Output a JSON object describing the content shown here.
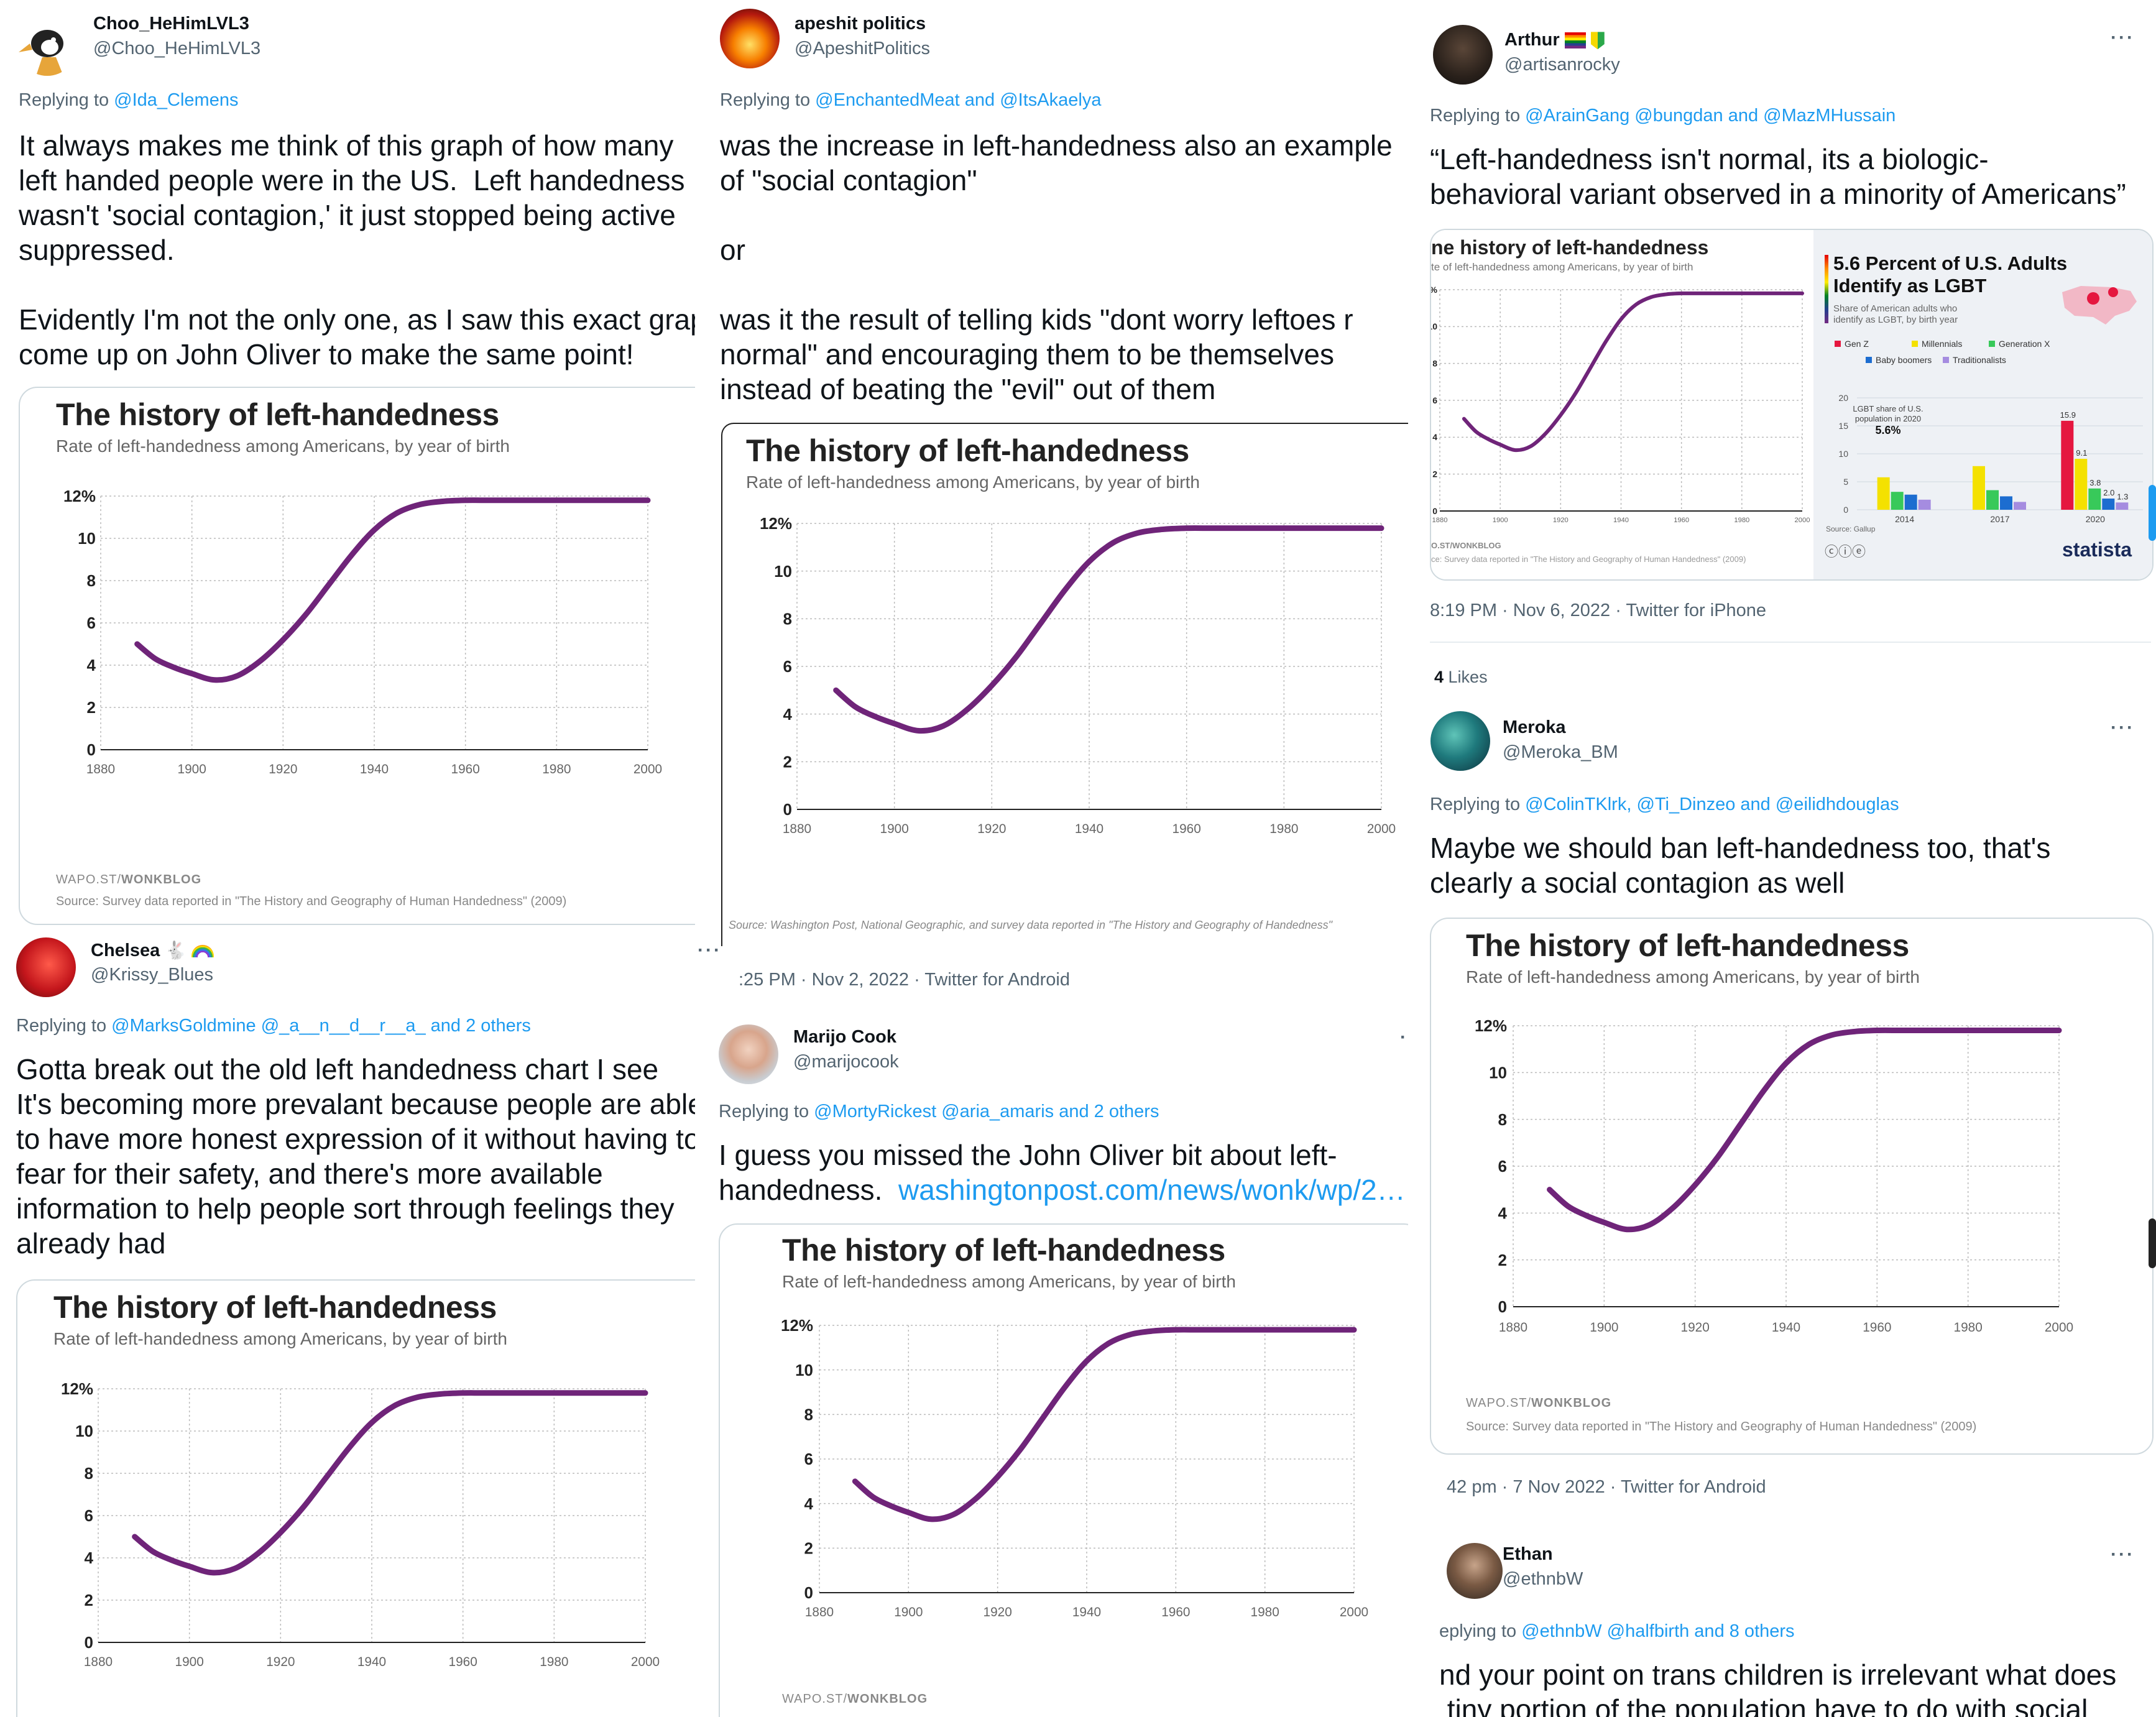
{
  "chart": {
    "title": "The history of left-handedness",
    "subtitle": "Rate of left-handedness among Americans, by year of birth",
    "footer_brand": "WAPO.ST/",
    "footer_brand_bold": "WONKBLOG",
    "source": "Source: Survey data reported in \"The History and Geography of Human Handedness\" (2009)",
    "source_alt": "Source: Washington Post, National Geographic, and survey data reported in \"The History and Geography of Handedness\"",
    "line_color": "#6f2479"
  },
  "chart_data": {
    "type": "line",
    "title": "The history of left-handedness",
    "subtitle": "Rate of left-handedness among Americans, by year of birth",
    "x": [
      1888,
      1892,
      1896,
      1900,
      1905,
      1910,
      1915,
      1920,
      1925,
      1930,
      1935,
      1940,
      1945,
      1950,
      1955,
      1960,
      1965,
      1970,
      1980,
      1990,
      2000
    ],
    "y": [
      5.0,
      4.3,
      3.9,
      3.6,
      3.3,
      3.5,
      4.2,
      5.2,
      6.4,
      7.8,
      9.2,
      10.4,
      11.2,
      11.6,
      11.75,
      11.8,
      11.8,
      11.8,
      11.8,
      11.8,
      11.8
    ],
    "xlim": [
      1880,
      2000
    ],
    "ylim": [
      0,
      12
    ],
    "x_ticks": [
      "1880",
      "1900",
      "1920",
      "1940",
      "1960",
      "1980",
      "2000"
    ],
    "y_ticks": [
      "0",
      "2",
      "4",
      "6",
      "8",
      "10",
      "12%"
    ],
    "grid": true
  },
  "lgbt_chart": {
    "title_line1": "5.6 Percent of U.S. Adults",
    "title_line2": "Identify as LGBT",
    "sub_line1": "Share of American adults who",
    "sub_line2": "identify as LGBT, by birth year",
    "legend": [
      "Gen Z",
      "Millennials",
      "Generation X",
      "Baby boomers",
      "Traditionalists"
    ],
    "legend_colors": [
      "#e5173f",
      "#f4e100",
      "#38c95a",
      "#1c6dd0",
      "#a58ce0"
    ],
    "y_ticks": [
      "0",
      "5",
      "10",
      "15",
      "20"
    ],
    "years": [
      "2014",
      "2017",
      "2020"
    ],
    "callout_line1": "LGBT share of U.S.",
    "callout_line2": "population in 2020",
    "callout_value": "5.6%",
    "labels_2020": [
      "15.9",
      "9.1",
      "3.8",
      "2.0",
      "1.3"
    ],
    "source": "Source: Gallup",
    "brand": "statista"
  },
  "lgbt_chart_data": {
    "type": "bar",
    "categories": [
      "2014",
      "2017",
      "2020"
    ],
    "series": [
      {
        "name": "Gen Z",
        "values": [
          0,
          0,
          15.9
        ]
      },
      {
        "name": "Millennials",
        "values": [
          5.8,
          7.8,
          9.1
        ]
      },
      {
        "name": "Generation X",
        "values": [
          3.2,
          3.5,
          3.8
        ]
      },
      {
        "name": "Baby boomers",
        "values": [
          2.7,
          2.4,
          2.0
        ]
      },
      {
        "name": "Traditionalists",
        "values": [
          1.8,
          1.4,
          1.3
        ]
      }
    ],
    "ylim": [
      0,
      20
    ]
  },
  "tweets": {
    "t1": {
      "name": "Choo_HeHimLVL3",
      "handle": "@Choo_HeHimLVL3",
      "replying": "Replying to ",
      "reply_to": "@Ida_Clemens",
      "body": "It always makes me think of this graph of how many\nleft handed people were in the US.  Left handedness\nwasn't 'social contagion,' it just stopped being active\nsuppressed.\n\nEvidently I'm not the only one, as I saw this exact grap\ncome up on John Oliver to make the same point!"
    },
    "t2": {
      "name": "apeshit politics",
      "handle": "@ApeshitPolitics",
      "replying": "Replying to ",
      "reply_to": "@EnchantedMeat and @ItsAkaelya",
      "body": "was the increase in left-handedness also an example\nof \"social contagion\"\n\nor\n\nwas it the result of telling kids \"dont worry leftoes r\nnormal\" and encouraging them to be themselves\ninstead of beating the \"evil\" out of them",
      "meta": ":25 PM · Nov 2, 2022 · Twitter for Android"
    },
    "t3": {
      "name": "Arthur",
      "handle": "@artisanrocky",
      "replying": "Replying to ",
      "reply_to": "@ArainGang @bungdan and @MazMHussain",
      "body": "“Left-handedness isn't normal, its a biologic-\nbehavioral variant observed in a minority of Americans”",
      "meta": "8:19 PM · Nov 6, 2022 · Twitter for iPhone",
      "likes_count": "4",
      "likes_label": " Likes",
      "crop_title": "ne history of left-handedness",
      "crop_sub": "te of left-handedness among Americans, by year of birth",
      "crop_src": "ce: Survey data reported in \"The History and Geography of Human Handedness\" (2009)",
      "crop_brand": "O.ST/WONKBLOG"
    },
    "t4": {
      "name": "Meroka",
      "handle": "@Meroka_BM",
      "replying": "Replying to ",
      "reply_to": "@ColinTKlrk, @Ti_Dinzeo and @eilidhdouglas",
      "body": "Maybe we should ban left-handedness too, that's\nclearly a social contagion as well",
      "meta": "42 pm · 7 Nov 2022 · Twitter for Android"
    },
    "t5": {
      "name": "Chelsea",
      "handle": "@Krissy_Blues",
      "replying": "Replying to ",
      "reply_to": "@MarksGoldmine @_a__n__d__r__a_ and 2 others",
      "body": "Gotta break out the old left handedness chart I see\nIt's becoming more prevalant because people are able\nto have more honest expression of it without having to\nfear for their safety, and there's more available\ninformation to help people sort through feelings they\nalready had"
    },
    "t6": {
      "name": "Marijo Cook",
      "handle": "@marijocook",
      "replying": "Replying to ",
      "reply_to": "@MortyRickest @aria_amaris and 2 others",
      "body": "I guess you missed the John Oliver bit about left-\nhandedness.  ",
      "link": "washingtonpost.com/news/wonk/wp/2…"
    },
    "t7": {
      "name": "Ethan",
      "handle": "@ethnbW",
      "replying": "eplying to ",
      "reply_to": "@ethnbW @halfbirth  and 8 others",
      "body": "nd your point on trans children is irrelevant what does\n tiny portion of the population have to do with social"
    }
  },
  "more_label": "···"
}
